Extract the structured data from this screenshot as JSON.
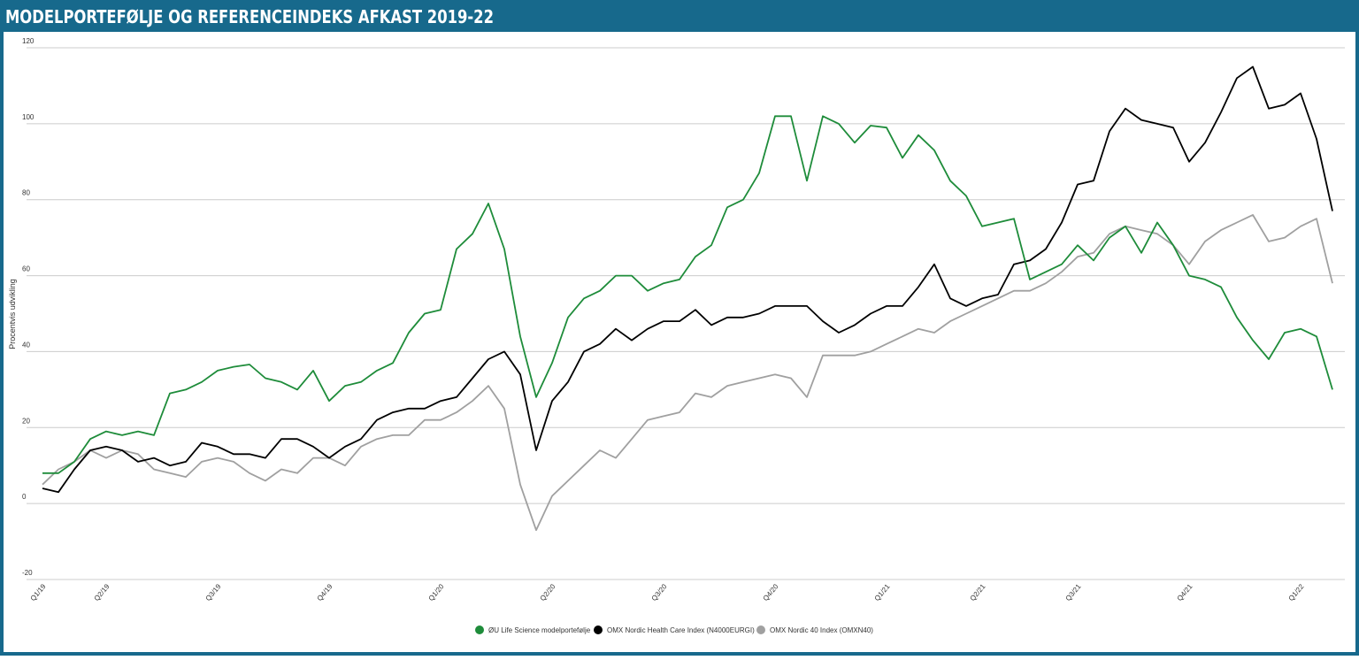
{
  "chart_data": {
    "type": "line",
    "title": "MODELPORTEFØLJE OG REFERENCEINDEKS AFKAST 2019-22",
    "y_label": "Procentvis udvikling",
    "categories": [
      "Q1/19",
      null,
      null,
      null,
      "Q2/19",
      null,
      null,
      null,
      null,
      null,
      null,
      "Q3/19",
      null,
      null,
      null,
      null,
      null,
      null,
      "Q4/19",
      null,
      null,
      null,
      null,
      null,
      null,
      "Q1/20",
      null,
      null,
      null,
      null,
      null,
      null,
      "Q2/20",
      null,
      null,
      null,
      null,
      null,
      null,
      "Q3/20",
      null,
      null,
      null,
      null,
      null,
      null,
      "Q4/20",
      null,
      null,
      null,
      null,
      null,
      null,
      "Q1/21",
      null,
      null,
      null,
      null,
      null,
      "Q2/21",
      null,
      null,
      null,
      null,
      null,
      "Q3/21",
      null,
      null,
      null,
      null,
      null,
      null,
      "Q4/21",
      null,
      null,
      null,
      null,
      null,
      null,
      "Q1/22",
      null,
      null
    ],
    "series": [
      {
        "name": "ØU Life Science modelportefølje",
        "color": "#1e8c3a",
        "values": [
          8,
          8,
          11,
          17,
          19,
          18,
          19,
          18,
          29,
          30,
          32,
          35,
          36,
          36.6,
          33,
          32,
          30,
          35,
          27,
          31,
          32,
          35,
          37,
          45,
          50,
          51,
          67,
          71,
          79,
          67,
          44,
          28,
          37,
          49,
          54,
          56,
          60,
          60,
          56,
          58,
          59,
          65,
          68,
          78,
          80,
          87,
          102,
          102,
          85,
          102,
          100,
          95,
          99.5,
          99,
          91,
          97,
          93,
          85,
          81,
          73,
          74,
          75,
          59,
          61,
          63,
          68,
          64,
          70,
          73,
          66,
          74,
          68,
          60,
          59,
          57,
          49,
          43,
          38,
          45,
          46,
          44,
          30
        ]
      },
      {
        "name": "OMX Nordic Health Care Index (N4000EURGI)",
        "color": "#000000",
        "values": [
          4,
          3,
          9,
          14,
          15,
          14,
          11,
          12,
          10,
          11,
          16,
          15,
          13,
          13,
          12,
          17,
          17,
          15,
          12,
          15,
          17,
          22,
          24,
          25,
          25,
          27,
          28,
          33,
          38,
          40,
          34,
          14,
          27,
          32,
          40,
          42,
          46,
          43,
          46,
          48,
          48,
          51,
          47,
          49,
          49,
          50,
          52,
          52,
          52,
          48,
          45,
          47,
          50,
          52,
          52,
          57,
          63,
          54,
          52,
          54,
          55,
          63,
          64,
          67,
          74,
          84,
          85,
          98,
          104,
          101,
          100,
          99,
          90,
          95,
          103,
          112,
          115,
          104,
          105,
          108,
          96,
          77
        ]
      },
      {
        "name": "OMX Nordic 40 Index (OMXN40)",
        "color": "#a0a0a0",
        "values": [
          5,
          9,
          11,
          14,
          12,
          14,
          13,
          9,
          8,
          7,
          11,
          12,
          11,
          8,
          6,
          9,
          8,
          12,
          12,
          10,
          15,
          17,
          18,
          18,
          22,
          22,
          24,
          27,
          31,
          25,
          5,
          -7,
          2,
          6,
          10,
          14,
          12,
          17,
          22,
          23,
          24,
          29,
          28,
          31,
          32,
          33,
          34,
          33,
          28,
          39,
          39,
          39,
          40,
          42,
          44,
          46,
          45,
          48,
          50,
          52,
          54,
          56,
          56,
          58,
          61,
          65,
          66,
          71,
          73,
          72,
          71,
          68,
          63,
          69,
          72,
          74,
          76,
          69,
          70,
          73,
          75,
          58
        ]
      }
    ],
    "ylim": [
      -20,
      120
    ],
    "yticks": [
      -20,
      0,
      20,
      40,
      60,
      80,
      100,
      120
    ],
    "grid": true
  }
}
